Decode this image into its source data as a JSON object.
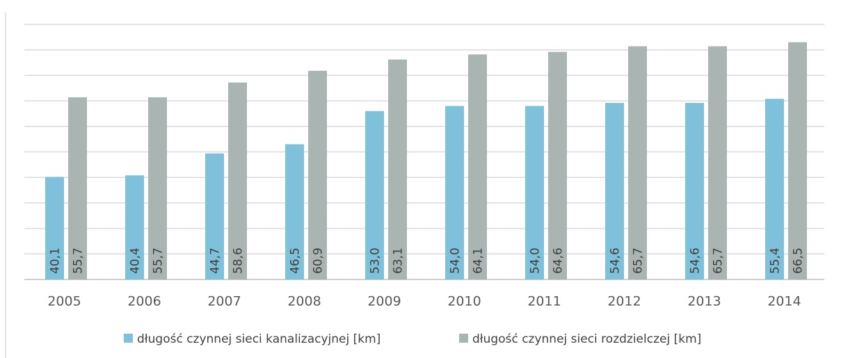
{
  "chart_data": {
    "type": "bar",
    "categories": [
      "2005",
      "2006",
      "2007",
      "2008",
      "2009",
      "2010",
      "2011",
      "2012",
      "2013",
      "2014"
    ],
    "series": [
      {
        "name": "długość czynnej sieci kanalizacyjnej [km]",
        "color": "#7fc0db",
        "values": [
          40.1,
          40.4,
          44.7,
          46.5,
          53.0,
          54.0,
          54.0,
          54.6,
          54.6,
          55.4
        ],
        "value_labels": [
          "40,1",
          "40,4",
          "44,7",
          "46,5",
          "53,0",
          "54,0",
          "54,0",
          "54,6",
          "54,6",
          "55,4"
        ]
      },
      {
        "name": "długość czynnej sieci rozdzielczej [km]",
        "color": "#a9b4b3",
        "values": [
          55.7,
          55.7,
          58.6,
          60.9,
          63.1,
          64.1,
          64.6,
          65.7,
          65.7,
          66.5
        ],
        "value_labels": [
          "55,7",
          "55,7",
          "58,6",
          "60,9",
          "63,1",
          "64,1",
          "64,6",
          "65,7",
          "65,7",
          "66,5"
        ]
      }
    ],
    "ylim": [
      20,
      70
    ],
    "yticks": [
      20,
      25,
      30,
      35,
      40,
      45,
      50,
      55,
      60,
      65,
      70
    ],
    "grid": true
  }
}
